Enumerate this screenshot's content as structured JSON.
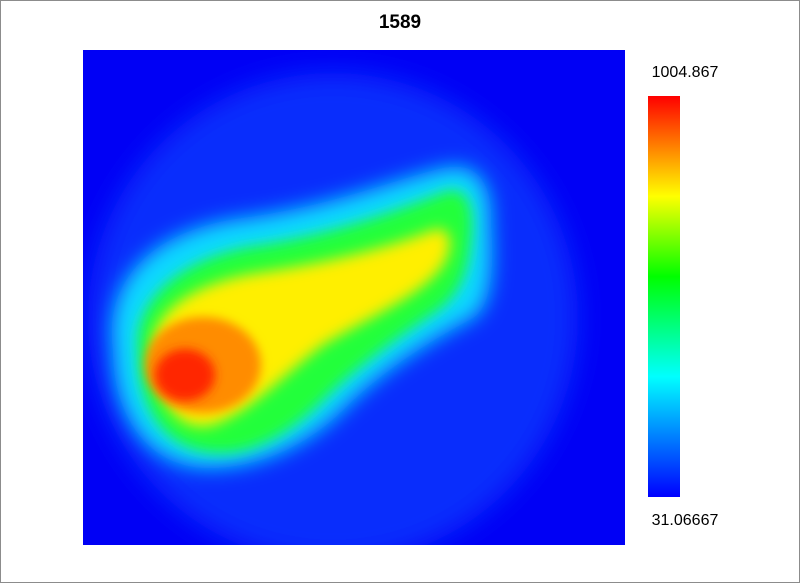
{
  "chart_data": {
    "type": "heatmap",
    "title": "1589",
    "xlabel": "",
    "ylabel": "",
    "colorbar": {
      "max_label": "1004.867",
      "min_label": "31.06667",
      "max": 1004.867,
      "min": 31.06667,
      "colormap": [
        "#0000ff",
        "#00ffff",
        "#00ff00",
        "#ffff00",
        "#ff0000"
      ]
    },
    "grid": false,
    "legend": "colorbar-right",
    "background_value": 31.06667
  }
}
